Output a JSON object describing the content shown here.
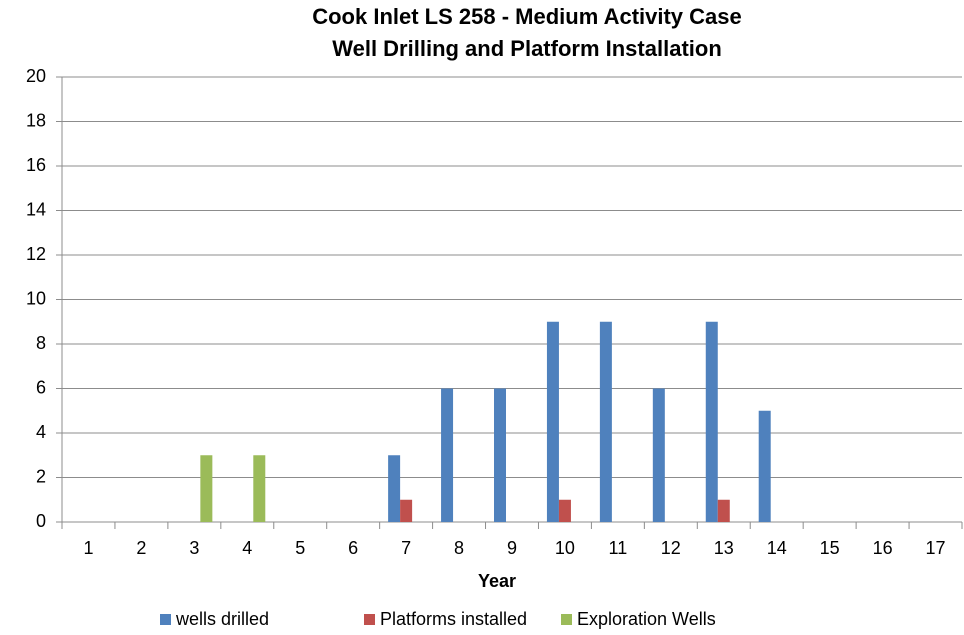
{
  "chart_data": {
    "type": "bar",
    "title": "Cook Inlet LS 258 - Medium Activity Case",
    "subtitle": "Well Drilling and Platform Installation",
    "x_label": "Year",
    "categories": [
      "1",
      "2",
      "3",
      "4",
      "5",
      "6",
      "7",
      "8",
      "9",
      "10",
      "11",
      "12",
      "13",
      "14",
      "15",
      "16",
      "17"
    ],
    "series": [
      {
        "name": "wells drilled",
        "color": "#4f81bd",
        "values": [
          0,
          0,
          0,
          0,
          0,
          0,
          3,
          6,
          6,
          9,
          9,
          6,
          9,
          5,
          0,
          0,
          0
        ]
      },
      {
        "name": "Platforms installed",
        "color": "#c0504d",
        "values": [
          0,
          0,
          0,
          0,
          0,
          0,
          1,
          0,
          0,
          1,
          0,
          0,
          1,
          0,
          0,
          0,
          0
        ]
      },
      {
        "name": "Exploration Wells",
        "color": "#9bbb59",
        "values": [
          0,
          0,
          3,
          3,
          0,
          0,
          0,
          0,
          0,
          0,
          0,
          0,
          0,
          0,
          0,
          0,
          0
        ]
      }
    ],
    "ylim": [
      0,
      20
    ],
    "yticks": [
      0,
      2,
      4,
      6,
      8,
      10,
      12,
      14,
      16,
      18,
      20
    ],
    "grid": true,
    "legend": "bottom"
  }
}
